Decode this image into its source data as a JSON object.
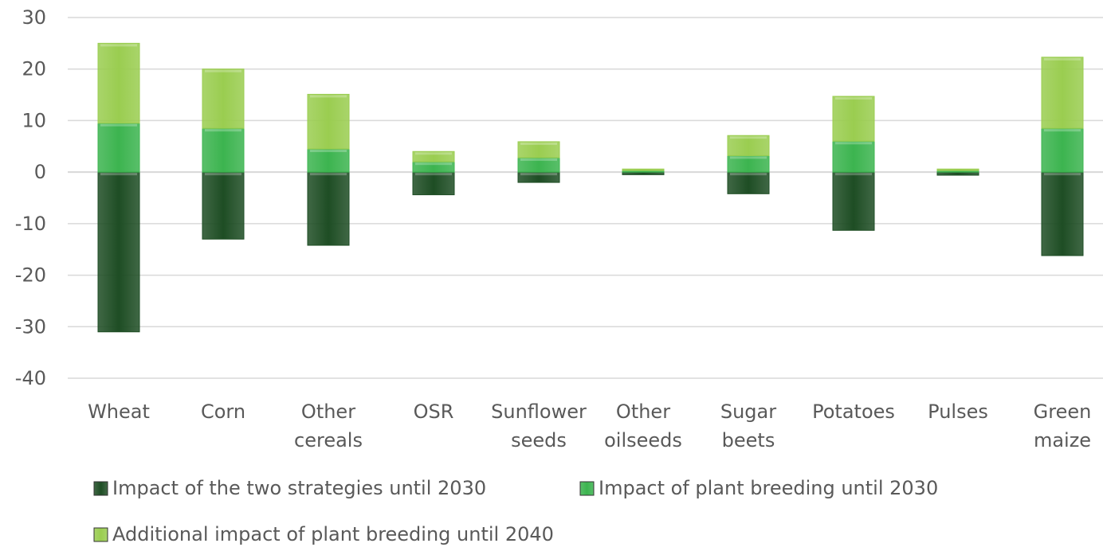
{
  "chart_data": {
    "type": "bar",
    "stacked": true,
    "title": "",
    "xlabel": "",
    "ylabel": "",
    "ylim": [
      -40,
      30
    ],
    "yticks": [
      30,
      20,
      10,
      0,
      -10,
      -20,
      -30,
      -40
    ],
    "grid": true,
    "legend_position": "bottom",
    "categories": [
      [
        "Wheat"
      ],
      [
        "Corn"
      ],
      [
        "Other",
        "cereals"
      ],
      [
        "OSR"
      ],
      [
        "Sunflower",
        "seeds"
      ],
      [
        "Other",
        "oilseeds"
      ],
      [
        "Sugar",
        "beets"
      ],
      [
        "Potatoes"
      ],
      [
        "Pulses"
      ],
      [
        "Green",
        "maize"
      ]
    ],
    "series": [
      {
        "name": "Impact of the two strategies until 2030",
        "color": "#1e4d24",
        "values": [
          -31,
          -13,
          -14.2,
          -4.4,
          -2,
          -0.5,
          -4.2,
          -11.3,
          -0.6,
          -16.2
        ]
      },
      {
        "name": "Impact of plant breeding until 2030",
        "color": "#3cb44f",
        "values": [
          9.5,
          8.5,
          4.5,
          2.0,
          2.8,
          0.3,
          3.2,
          6.0,
          0.3,
          8.5
        ]
      },
      {
        "name": "Additional impact of plant breeding until 2040",
        "color": "#9acd50",
        "values": [
          15.5,
          11.5,
          10.6,
          2.0,
          3.1,
          0.3,
          3.9,
          8.7,
          0.3,
          13.8
        ]
      }
    ]
  }
}
